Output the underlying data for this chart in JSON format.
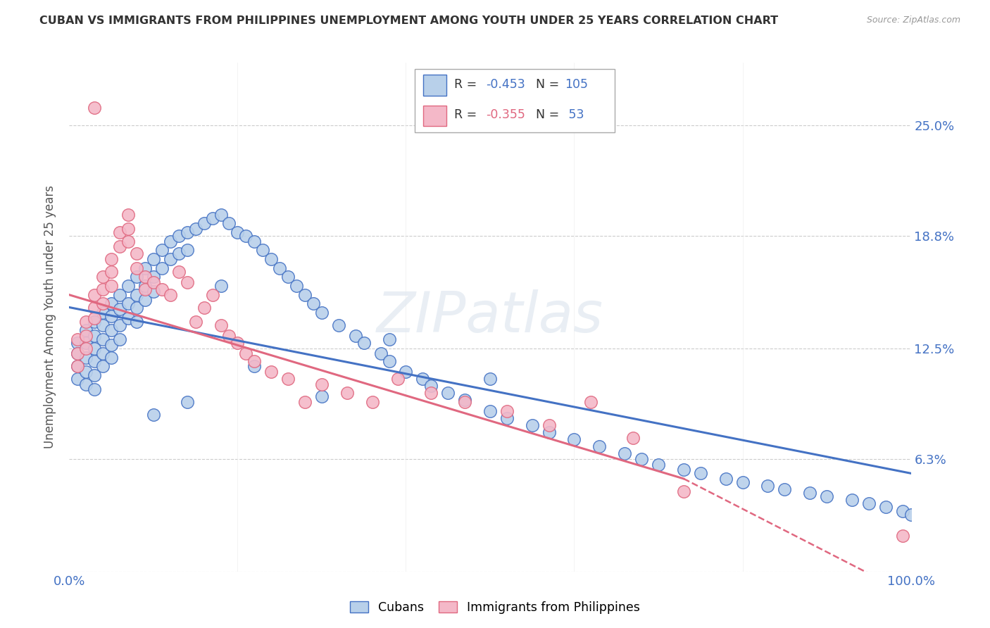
{
  "title": "CUBAN VS IMMIGRANTS FROM PHILIPPINES UNEMPLOYMENT AMONG YOUTH UNDER 25 YEARS CORRELATION CHART",
  "source": "Source: ZipAtlas.com",
  "ylabel": "Unemployment Among Youth under 25 years",
  "ytick_vals": [
    0.0,
    0.063,
    0.125,
    0.188,
    0.25
  ],
  "ytick_labels": [
    "",
    "6.3%",
    "12.5%",
    "18.8%",
    "25.0%"
  ],
  "xlim": [
    0.0,
    1.0
  ],
  "ylim": [
    0.0,
    0.285
  ],
  "legend_blue_r": "-0.453",
  "legend_blue_n": "105",
  "legend_pink_r": "-0.355",
  "legend_pink_n": "53",
  "blue_color": "#b8d0ea",
  "blue_edge_color": "#4472C4",
  "pink_color": "#f4b8c8",
  "pink_edge_color": "#e06880",
  "blue_line_color": "#4472C4",
  "pink_line_color": "#e06880",
  "watermark": "ZIPatlas",
  "blue_scatter_x": [
    0.01,
    0.01,
    0.01,
    0.01,
    0.02,
    0.02,
    0.02,
    0.02,
    0.02,
    0.03,
    0.03,
    0.03,
    0.03,
    0.03,
    0.03,
    0.04,
    0.04,
    0.04,
    0.04,
    0.04,
    0.05,
    0.05,
    0.05,
    0.05,
    0.05,
    0.06,
    0.06,
    0.06,
    0.06,
    0.07,
    0.07,
    0.07,
    0.08,
    0.08,
    0.08,
    0.08,
    0.09,
    0.09,
    0.09,
    0.1,
    0.1,
    0.1,
    0.11,
    0.11,
    0.12,
    0.12,
    0.13,
    0.13,
    0.14,
    0.14,
    0.15,
    0.16,
    0.17,
    0.18,
    0.19,
    0.2,
    0.21,
    0.22,
    0.23,
    0.24,
    0.25,
    0.26,
    0.27,
    0.28,
    0.29,
    0.3,
    0.32,
    0.34,
    0.35,
    0.37,
    0.38,
    0.4,
    0.42,
    0.43,
    0.45,
    0.47,
    0.5,
    0.52,
    0.55,
    0.57,
    0.6,
    0.63,
    0.66,
    0.68,
    0.7,
    0.73,
    0.75,
    0.78,
    0.8,
    0.83,
    0.85,
    0.88,
    0.9,
    0.93,
    0.95,
    0.97,
    0.99,
    1.0,
    0.5,
    0.38,
    0.3,
    0.22,
    0.18,
    0.14,
    0.1
  ],
  "blue_scatter_y": [
    0.128,
    0.122,
    0.115,
    0.108,
    0.135,
    0.128,
    0.12,
    0.112,
    0.105,
    0.14,
    0.132,
    0.125,
    0.118,
    0.11,
    0.102,
    0.145,
    0.138,
    0.13,
    0.122,
    0.115,
    0.15,
    0.143,
    0.135,
    0.127,
    0.12,
    0.155,
    0.147,
    0.138,
    0.13,
    0.16,
    0.15,
    0.142,
    0.165,
    0.155,
    0.148,
    0.14,
    0.17,
    0.16,
    0.152,
    0.175,
    0.165,
    0.157,
    0.18,
    0.17,
    0.185,
    0.175,
    0.188,
    0.178,
    0.19,
    0.18,
    0.192,
    0.195,
    0.198,
    0.2,
    0.195,
    0.19,
    0.188,
    0.185,
    0.18,
    0.175,
    0.17,
    0.165,
    0.16,
    0.155,
    0.15,
    0.145,
    0.138,
    0.132,
    0.128,
    0.122,
    0.118,
    0.112,
    0.108,
    0.104,
    0.1,
    0.096,
    0.09,
    0.086,
    0.082,
    0.078,
    0.074,
    0.07,
    0.066,
    0.063,
    0.06,
    0.057,
    0.055,
    0.052,
    0.05,
    0.048,
    0.046,
    0.044,
    0.042,
    0.04,
    0.038,
    0.036,
    0.034,
    0.032,
    0.108,
    0.13,
    0.098,
    0.115,
    0.16,
    0.095,
    0.088
  ],
  "pink_scatter_x": [
    0.01,
    0.01,
    0.01,
    0.02,
    0.02,
    0.02,
    0.03,
    0.03,
    0.03,
    0.03,
    0.04,
    0.04,
    0.04,
    0.05,
    0.05,
    0.05,
    0.06,
    0.06,
    0.07,
    0.07,
    0.07,
    0.08,
    0.08,
    0.09,
    0.09,
    0.1,
    0.11,
    0.12,
    0.13,
    0.14,
    0.15,
    0.16,
    0.17,
    0.18,
    0.19,
    0.2,
    0.21,
    0.22,
    0.24,
    0.26,
    0.28,
    0.3,
    0.33,
    0.36,
    0.39,
    0.43,
    0.47,
    0.52,
    0.57,
    0.62,
    0.67,
    0.73,
    0.99
  ],
  "pink_scatter_y": [
    0.13,
    0.122,
    0.115,
    0.14,
    0.132,
    0.125,
    0.155,
    0.148,
    0.26,
    0.142,
    0.165,
    0.158,
    0.15,
    0.175,
    0.168,
    0.16,
    0.19,
    0.182,
    0.2,
    0.192,
    0.185,
    0.178,
    0.17,
    0.165,
    0.158,
    0.162,
    0.158,
    0.155,
    0.168,
    0.162,
    0.14,
    0.148,
    0.155,
    0.138,
    0.132,
    0.128,
    0.122,
    0.118,
    0.112,
    0.108,
    0.095,
    0.105,
    0.1,
    0.095,
    0.108,
    0.1,
    0.095,
    0.09,
    0.082,
    0.095,
    0.075,
    0.045,
    0.02
  ]
}
